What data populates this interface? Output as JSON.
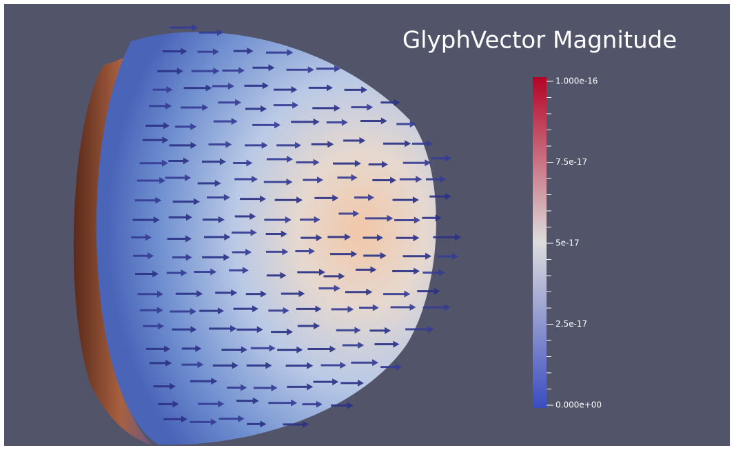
{
  "colorbar": {
    "title": "GlyphVector Magnitude",
    "range": [
      0,
      1e-16
    ],
    "ticks": [
      {
        "value": 0,
        "label": "0.000e+00"
      },
      2.5e-17,
      5e-17,
      7.5e-17,
      {
        "value": 1e-16,
        "label": "1.000e-16"
      }
    ],
    "colors": [
      "#3b4cc0",
      "#dddddd",
      "#b40426"
    ]
  }
}
